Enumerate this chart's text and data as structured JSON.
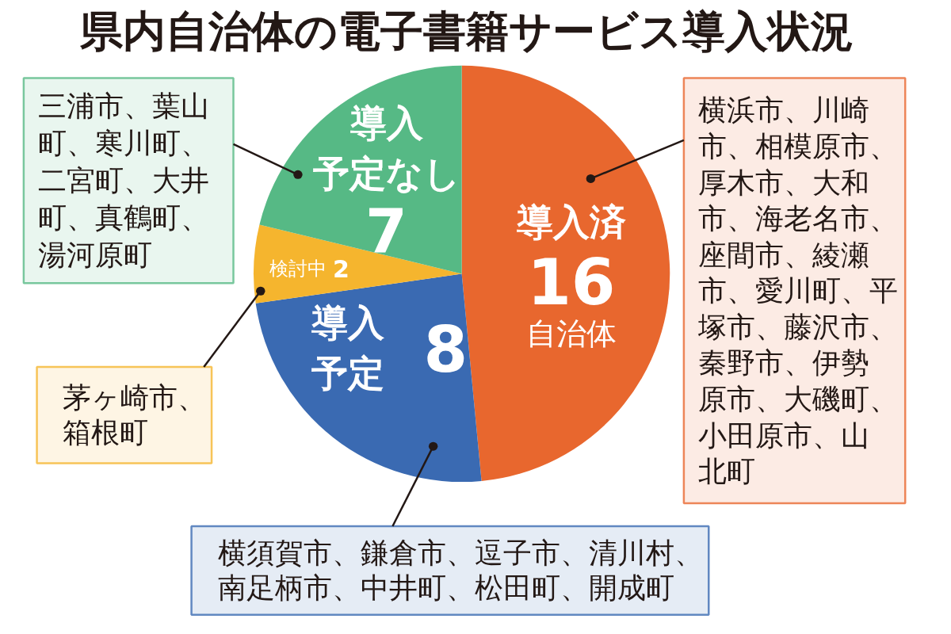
{
  "chart_data": {
    "type": "pie",
    "title": "県内自治体の電子書籍サービス導入状況",
    "categories": [
      "導入済",
      "導入予定",
      "検討中",
      "導入予定なし"
    ],
    "values": [
      16,
      8,
      2,
      7
    ],
    "value_labels": [
      "16\n自治体",
      "8",
      "2",
      "7"
    ],
    "colors": [
      "#e8672e",
      "#3a6ab2",
      "#f5b52e",
      "#56b985"
    ],
    "annotations": [
      "横浜市、川崎市、相模原市、厚木市、大和市、海老名市、座間市、綾瀬市、愛川町、平塚市、藤沢市、秦野市、伊勢原市、大磯町、小田原市、山北町",
      "横須賀市、鎌倉市、逗子市、清川村、南足柄市、中井町、松田町、開成町",
      "茅ヶ崎市、箱根町",
      "三浦市、葉山町、寒川町、二宮町、大井町、真鶴町、湯河原町"
    ]
  }
}
